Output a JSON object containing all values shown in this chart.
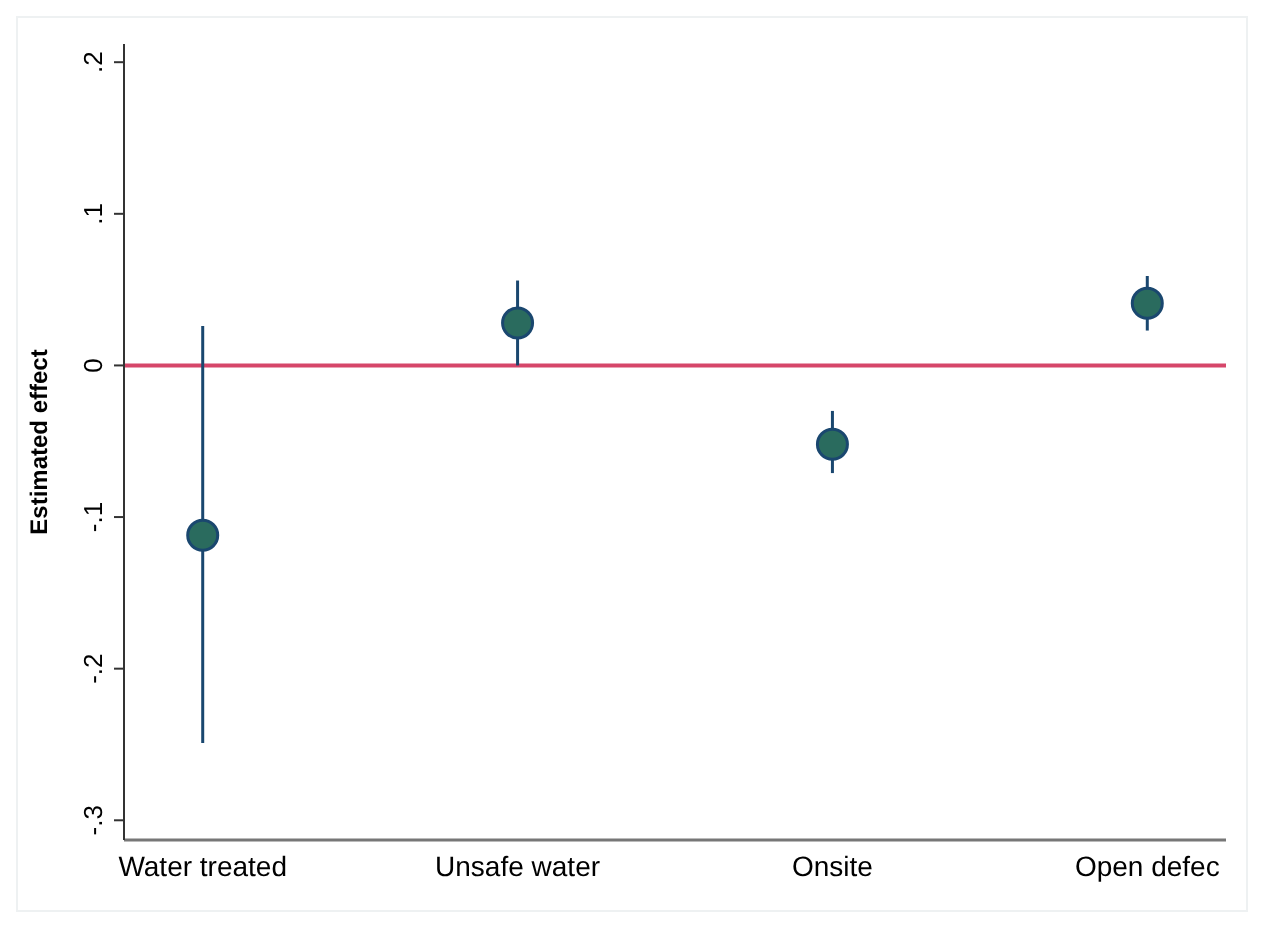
{
  "chart_data": {
    "type": "scatter",
    "ylabel": "Estimated effect",
    "categories": [
      "Water treated",
      "Unsafe water",
      "Onsite",
      "Open defec"
    ],
    "values": [
      -0.112,
      0.028,
      -0.052,
      0.041
    ],
    "errors": [
      [
        -0.249,
        0.026
      ],
      [
        0,
        0.056
      ],
      [
        -0.071,
        -0.03
      ],
      [
        0.023,
        0.059
      ]
    ],
    "color": "#2a6b5e",
    "marker": "circle",
    "grid": false,
    "ylim": [
      -0.313,
      0.212
    ],
    "yticks": [
      {
        "value": -0.3,
        "label": "-.3"
      },
      {
        "value": -0.2,
        "label": "-.2"
      },
      {
        "value": -0.1,
        "label": "-.1"
      },
      {
        "value": 0,
        "label": "0"
      },
      {
        "value": 0.1,
        "label": ".1"
      },
      {
        "value": 0.2,
        "label": ".2"
      }
    ],
    "ref_lines": [
      {
        "axis": "y",
        "value": 0,
        "label": null,
        "color": "#d6466a"
      }
    ]
  }
}
